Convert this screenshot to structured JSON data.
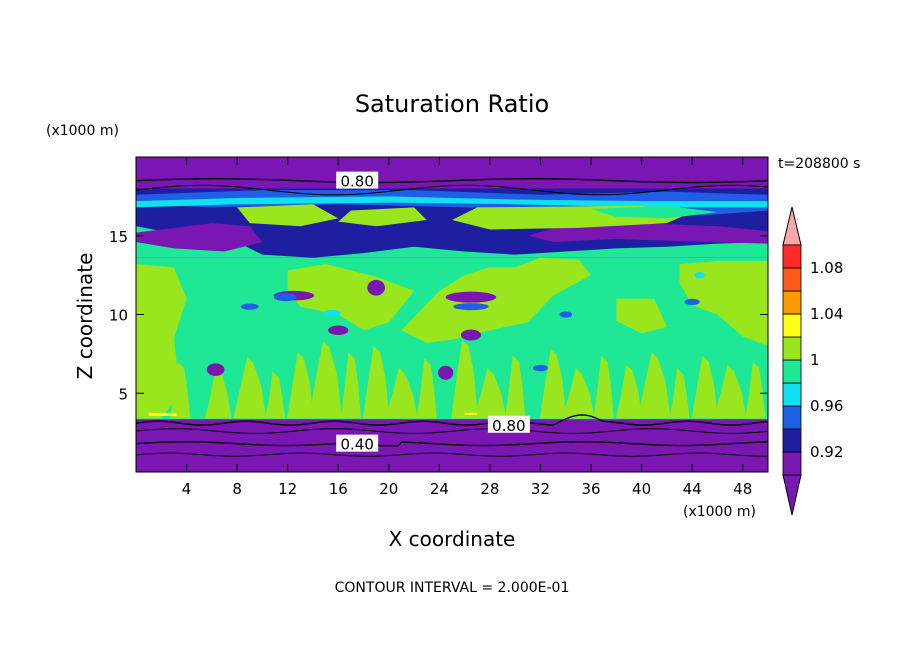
{
  "chart_data": {
    "type": "heatmap",
    "title": "Saturation Ratio",
    "xlabel": "X coordinate",
    "ylabel": "Z coordinate",
    "x_units": "(x1000 m)",
    "y_units": "(x1000 m)",
    "time_label": "t=208800 s",
    "footer": "CONTOUR INTERVAL = 2.000E-01",
    "xlim": [
      0,
      50
    ],
    "ylim": [
      0,
      20
    ],
    "x_ticks": [
      "4",
      "8",
      "12",
      "16",
      "20",
      "24",
      "28",
      "32",
      "36",
      "40",
      "44",
      "48"
    ],
    "y_ticks": [
      "5",
      "10",
      "15"
    ],
    "colorbar": {
      "levels": [
        0.9,
        0.92,
        0.94,
        0.96,
        0.98,
        1.0,
        1.02,
        1.04,
        1.06,
        1.08,
        1.1
      ],
      "labels": [
        "0.92",
        "0.96",
        "1",
        "1.04",
        "1.08"
      ],
      "colors": [
        "#7a17b2",
        "#1e1ea0",
        "#1f5fe6",
        "#10e0f0",
        "#1ee896",
        "#99e61f",
        "#ffff1a",
        "#ff9a00",
        "#ff5a1a",
        "#ff2a2a"
      ],
      "under_color": "#7a17b2",
      "over_color": "#f7a7a7"
    },
    "contour_labels": [
      {
        "text": "0.80",
        "x": 17.5,
        "z": 18.5
      },
      {
        "text": "0.80",
        "x": 29.5,
        "z": 3.0
      },
      {
        "text": "0.40",
        "x": 17.5,
        "z": 1.8
      }
    ],
    "bands": [
      {
        "z_range": [
          0,
          3.3
        ],
        "value": "< 0.92"
      },
      {
        "z_range": [
          3.3,
          13.5
        ],
        "value": "0.98 - 1.02"
      },
      {
        "z_range": [
          13.5,
          18
        ],
        "value": "0.92 - 1.00"
      },
      {
        "z_range": [
          18,
          20
        ],
        "value": "< 0.92"
      }
    ]
  }
}
